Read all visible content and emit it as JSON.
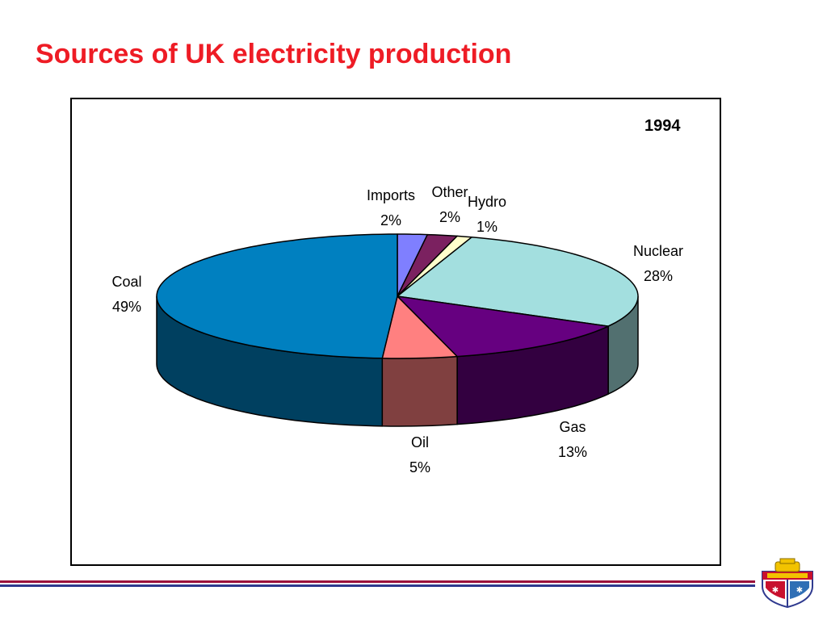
{
  "slide": {
    "title": "Sources of UK electricity production"
  },
  "chart_data": {
    "type": "pie",
    "title": "1994",
    "slices": [
      {
        "name": "Imports",
        "value": 2,
        "label": "2%",
        "color": "#7f7fff",
        "side_color": "#3f3f80"
      },
      {
        "name": "Other",
        "value": 2,
        "label": "2%",
        "color": "#7b2160",
        "side_color": "#3d1030"
      },
      {
        "name": "Hydro",
        "value": 1,
        "label": "1%",
        "color": "#ffffcc",
        "side_color": "#808066"
      },
      {
        "name": "Nuclear",
        "value": 28,
        "label": "28%",
        "color": "#a3dfdf",
        "side_color": "#527070"
      },
      {
        "name": "Gas",
        "value": 13,
        "label": "13%",
        "color": "#660080",
        "side_color": "#330040"
      },
      {
        "name": "Oil",
        "value": 5,
        "label": "5%",
        "color": "#ff8080",
        "side_color": "#804040"
      },
      {
        "name": "Coal",
        "value": 49,
        "label": "49%",
        "color": "#0080c0",
        "side_color": "#004060"
      }
    ]
  },
  "colors": {
    "title": "#ee1c25",
    "footer_line_top": "#9a0e3a",
    "footer_line_bottom": "#2f3a8f"
  },
  "icons": {
    "logo": "university-crest-icon"
  }
}
